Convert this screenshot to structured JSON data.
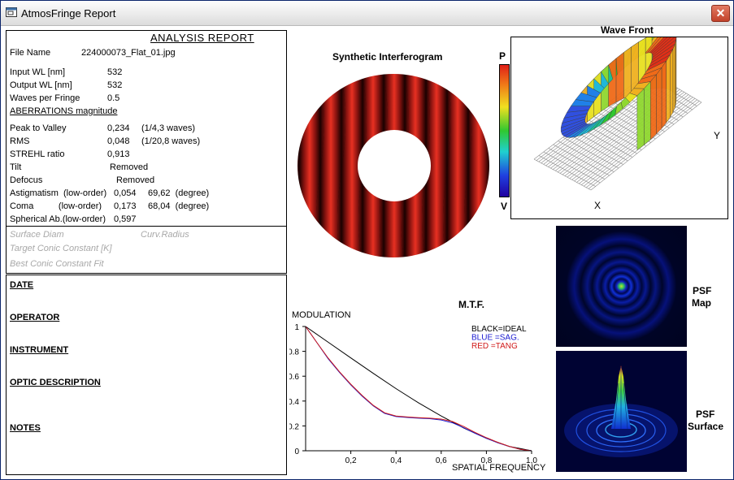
{
  "window": {
    "title": "AtmosFringe  Report",
    "close_label": "✕"
  },
  "report": {
    "title": "ANALYSIS  REPORT",
    "file_name_label": "File Name",
    "file_name_value": "224000073_Flat_01.jpg",
    "input_wl_label": "Input  WL [nm]",
    "input_wl_value": "532",
    "output_wl_label": "Output WL [nm]",
    "output_wl_value": "532",
    "waves_per_fringe_label": "Waves per Fringe",
    "waves_per_fringe_value": "0.5",
    "aberrations_heading": "ABERRATIONS magnitude",
    "pv_label": "Peak to Valley",
    "pv_value": "0,234",
    "pv_waves": "(1/4,3 waves)",
    "rms_label": "RMS",
    "rms_value": "0,048",
    "rms_waves": "(1/20,8 waves)",
    "strehl_label": "STREHL ratio",
    "strehl_value": "0,913",
    "tilt_label": "Tilt",
    "tilt_value": "Removed",
    "defocus_label": "Defocus",
    "defocus_value": "Removed",
    "astig_label": "Astigmatism  (low-order)",
    "astig_value": "0,054",
    "astig_angle": "69,62  (degree)",
    "coma_label": "Coma          (low-order)",
    "coma_value": "0,173",
    "coma_angle": "68,04  (degree)",
    "spherical_label": "Spherical Ab.(low-order)",
    "spherical_value": "0,597",
    "surface_diam_label": "Surface Diam",
    "curv_radius_label": "Curv.Radius",
    "target_conic_label": "Target Conic Constant [K]",
    "best_conic_label": "Best Conic Constant Fit"
  },
  "info": {
    "date_label": "DATE",
    "operator_label": "OPERATOR",
    "instrument_label": "INSTRUMENT",
    "optic_description_label": "OPTIC DESCRIPTION",
    "notes_label": "NOTES"
  },
  "interferogram": {
    "title": "Synthetic Interferogram",
    "fringe_color": "#d42a1e"
  },
  "colorbar": {
    "top_label": "P",
    "bottom_label": "V"
  },
  "wavefront": {
    "title": "Wave Front",
    "x_label": "X",
    "y_label": "Y"
  },
  "psf": {
    "map_label_1": "PSF",
    "map_label_2": "Map",
    "surface_label_1": "PSF",
    "surface_label_2": "Surface"
  },
  "chart_data": {
    "type": "line",
    "title": "M.T.F.",
    "ylabel": "MODULATION",
    "xlabel": "SPATIAL FREQUENCY",
    "xlim": [
      0,
      1.0
    ],
    "ylim": [
      0,
      1
    ],
    "x_ticks": [
      "0,2",
      "0,4",
      "0,6",
      "0,8",
      "1,0"
    ],
    "y_ticks": [
      "0",
      "0.2",
      "0.4",
      "0.6",
      "0.8",
      "1"
    ],
    "legend": [
      "BLACK=IDEAL",
      "BLUE   =SAG.",
      "RED    =TANG"
    ],
    "series": [
      {
        "name": "IDEAL",
        "color": "#000000",
        "x": [
          0,
          0.1,
          0.2,
          0.3,
          0.4,
          0.5,
          0.6,
          0.7,
          0.8,
          0.9,
          1.0
        ],
        "y": [
          1.0,
          0.873,
          0.747,
          0.622,
          0.5,
          0.385,
          0.28,
          0.183,
          0.1,
          0.035,
          0
        ]
      },
      {
        "name": "SAG.",
        "color": "#1a1ad0",
        "x": [
          0,
          0.05,
          0.1,
          0.15,
          0.2,
          0.25,
          0.3,
          0.35,
          0.4,
          0.45,
          0.5,
          0.55,
          0.6,
          0.65,
          0.7,
          0.75,
          0.8,
          0.85,
          0.9,
          0.95,
          1.0
        ],
        "y": [
          1.0,
          0.87,
          0.74,
          0.63,
          0.53,
          0.44,
          0.36,
          0.3,
          0.275,
          0.268,
          0.262,
          0.258,
          0.248,
          0.225,
          0.185,
          0.14,
          0.1,
          0.065,
          0.035,
          0.012,
          0
        ]
      },
      {
        "name": "TANG",
        "color": "#d01a1a",
        "x": [
          0,
          0.05,
          0.1,
          0.15,
          0.2,
          0.25,
          0.3,
          0.35,
          0.4,
          0.45,
          0.5,
          0.55,
          0.6,
          0.65,
          0.7,
          0.75,
          0.8,
          0.85,
          0.9,
          0.95,
          1.0
        ],
        "y": [
          1.0,
          0.87,
          0.745,
          0.635,
          0.535,
          0.445,
          0.365,
          0.305,
          0.28,
          0.272,
          0.266,
          0.262,
          0.255,
          0.235,
          0.195,
          0.148,
          0.105,
          0.068,
          0.036,
          0.012,
          0
        ]
      }
    ]
  }
}
